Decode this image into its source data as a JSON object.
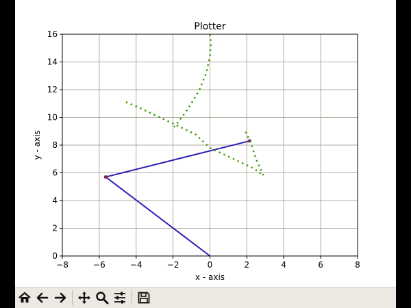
{
  "window": {
    "toolbar": {
      "buttons": [
        {
          "name": "home-button",
          "icon": "home-icon"
        },
        {
          "name": "back-button",
          "icon": "arrow-left-icon"
        },
        {
          "name": "forward-button",
          "icon": "arrow-right-icon"
        },
        {
          "name": "pan-button",
          "icon": "move-icon"
        },
        {
          "name": "zoom-button",
          "icon": "magnifier-icon"
        },
        {
          "name": "configure-subplots-button",
          "icon": "sliders-icon"
        },
        {
          "name": "save-button",
          "icon": "floppy-disk-icon"
        }
      ]
    }
  },
  "colors": {
    "arm": "#2b1fb5",
    "joint": "#8b1a4a",
    "trace": "#3c9a06",
    "grid": "#b0a89c"
  },
  "chart_data": {
    "type": "line",
    "title": "Plotter",
    "xlabel": "x - axis",
    "ylabel": "y - axis",
    "xlim": [
      -8,
      8
    ],
    "ylim": [
      0,
      16
    ],
    "xticks": [
      "−8",
      "−6",
      "−4",
      "−2",
      "0",
      "2",
      "4",
      "6",
      "8"
    ],
    "yticks": [
      "0",
      "2",
      "4",
      "6",
      "8",
      "10",
      "12",
      "14",
      "16"
    ],
    "xtick_values": [
      -8,
      -6,
      -4,
      -2,
      0,
      2,
      4,
      6,
      8
    ],
    "ytick_values": [
      0,
      2,
      4,
      6,
      8,
      10,
      12,
      14,
      16
    ],
    "grid": true,
    "series": [
      {
        "style": "solid",
        "x": [
          0,
          -5.65,
          2.15
        ],
        "y": [
          0,
          5.7,
          8.3
        ],
        "markers": [
          {
            "x": -5.65,
            "y": 5.7
          },
          {
            "x": 2.15,
            "y": 8.3
          }
        ]
      },
      {
        "style": "dotted",
        "x": [
          0,
          0.05,
          0.0,
          -0.2,
          -0.6,
          -1.2,
          -1.7,
          -1.95
        ],
        "y": [
          16,
          15.4,
          14.4,
          13.2,
          11.9,
          10.6,
          9.7,
          9.3
        ]
      },
      {
        "style": "dotted",
        "x": [
          -4.55,
          -4.0,
          -3.2,
          -2.4,
          -1.6,
          -0.8,
          0,
          0.8,
          1.6,
          2.4,
          2.9,
          2.5,
          2.2,
          1.9
        ],
        "y": [
          11.1,
          10.8,
          10.3,
          9.8,
          9.3,
          8.8,
          7.8,
          7.3,
          6.8,
          6.3,
          5.8,
          7.0,
          8.2,
          9.05
        ]
      }
    ]
  }
}
